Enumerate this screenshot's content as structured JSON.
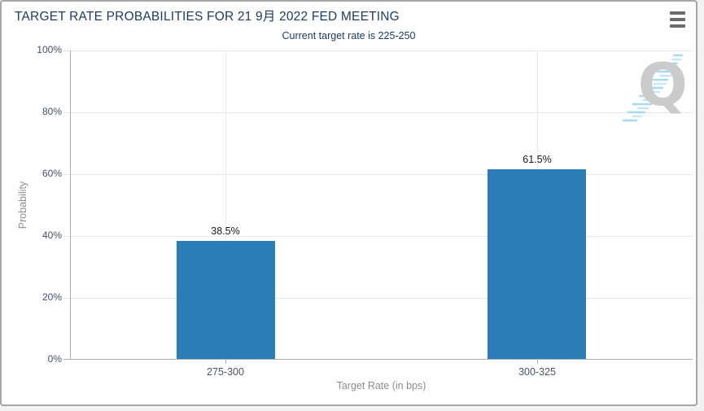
{
  "header": {
    "title": "TARGET RATE PROBABILITIES FOR 21 9月 2022 FED MEETING",
    "menu_icon": "hamburger-icon"
  },
  "chart_data": {
    "type": "bar",
    "title": "TARGET RATE PROBABILITIES FOR 21 9月 2022 FED MEETING",
    "subtitle": "Current target rate is 225-250",
    "categories": [
      "275-300",
      "300-325"
    ],
    "values": [
      38.5,
      61.5
    ],
    "data_labels": [
      "38.5%",
      "61.5%"
    ],
    "xlabel": "Target Rate (in bps)",
    "ylabel": "Probability",
    "ylim": [
      0,
      100
    ],
    "yticks": [
      "0%",
      "20%",
      "40%",
      "60%",
      "80%",
      "100%"
    ],
    "grid": true,
    "legend": "none",
    "bar_color": "#2a7eb5"
  },
  "watermark": {
    "letter": "Q",
    "letter_color": "#cbcbcb",
    "accent_color": "#a8d9f2"
  },
  "colors": {
    "title": "#1d3c63",
    "grid": "#e6e6e6",
    "axis": "#adadad",
    "tick_label": "#42506b",
    "category_label": "#4a5563",
    "axis_title": "#8d8d8d",
    "data_label": "#1a1a1a",
    "menu_icon": "#6b6b6b",
    "card_border": "#a6a6a6",
    "page_background": "#f2f2f2"
  }
}
